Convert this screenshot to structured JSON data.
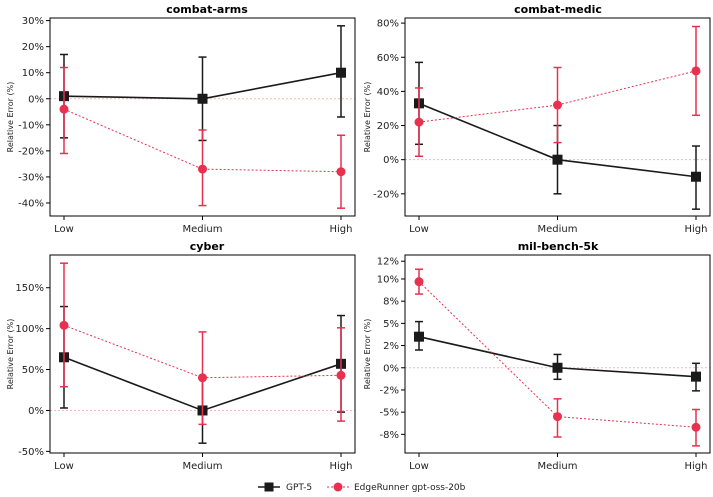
{
  "legend": {
    "gpt5_label": "GPT-5",
    "edgerunner_label": "EdgeRunner gpt-oss-20b"
  },
  "colors": {
    "gpt5": "#1a1a1a",
    "edgerunner": "#e8304f",
    "zero_line": "#f2b8c1",
    "axes": "#000000"
  },
  "chart_data": [
    {
      "type": "line",
      "title": "combat-arms",
      "ylabel": "Relative Error (%)",
      "categories": [
        "Low",
        "Medium",
        "High"
      ],
      "ylim": [
        -45,
        31
      ],
      "yticks": [
        30,
        20,
        10,
        0,
        -10,
        -20,
        -30,
        -40
      ],
      "ytick_labels": [
        "30%",
        "20%",
        "10%",
        "0%",
        "-10%",
        "-20%",
        "-30%",
        "-40%"
      ],
      "series": [
        {
          "name": "GPT-5",
          "values": [
            1,
            0,
            10
          ],
          "lower": [
            -15,
            -16,
            -7
          ],
          "upper": [
            17,
            16,
            28
          ]
        },
        {
          "name": "EdgeRunner gpt-oss-20b",
          "values": [
            -4,
            -27,
            -28
          ],
          "lower": [
            -21,
            -41,
            -42
          ],
          "upper": [
            12,
            -12,
            -14
          ]
        }
      ]
    },
    {
      "type": "line",
      "title": "combat-medic",
      "ylabel": "Relative Error (%)",
      "categories": [
        "Low",
        "Medium",
        "High"
      ],
      "ylim": [
        -33,
        83
      ],
      "yticks": [
        80,
        60,
        40,
        20,
        0,
        -20
      ],
      "ytick_labels": [
        "80%",
        "60%",
        "40%",
        "20%",
        "0%",
        "-20%"
      ],
      "series": [
        {
          "name": "GPT-5",
          "values": [
            33,
            0,
            -10
          ],
          "lower": [
            9,
            -20,
            -29
          ],
          "upper": [
            57,
            20,
            8
          ]
        },
        {
          "name": "EdgeRunner gpt-oss-20b",
          "values": [
            22,
            32,
            52
          ],
          "lower": [
            2,
            10,
            26
          ],
          "upper": [
            42,
            54,
            78
          ]
        }
      ]
    },
    {
      "type": "line",
      "title": "cyber",
      "ylabel": "Relative Error (%)",
      "categories": [
        "Low",
        "Medium",
        "High"
      ],
      "ylim": [
        -52,
        190
      ],
      "yticks": [
        150,
        100,
        50,
        0,
        -50
      ],
      "ytick_labels": [
        "150%",
        "100%",
        "50%",
        "0%",
        "-50%"
      ],
      "series": [
        {
          "name": "GPT-5",
          "values": [
            65,
            0,
            57
          ],
          "lower": [
            3,
            -40,
            -2
          ],
          "upper": [
            127,
            40,
            116
          ]
        },
        {
          "name": "EdgeRunner gpt-oss-20b",
          "values": [
            104,
            40,
            43
          ],
          "lower": [
            29,
            -17,
            -13
          ],
          "upper": [
            180,
            96,
            101
          ]
        }
      ]
    },
    {
      "type": "line",
      "title": "mil-bench-5k",
      "ylabel": "Relative Error (%)",
      "categories": [
        "Low",
        "Medium",
        "High"
      ],
      "ylim": [
        -9.6,
        12.7
      ],
      "yticks": [
        12,
        10,
        8,
        5,
        2,
        0,
        -2,
        -5,
        -8
      ],
      "ytick_values": [
        12,
        10,
        7.5,
        5,
        2.5,
        0,
        -2.5,
        -5,
        -7.5
      ],
      "ytick_labels": [
        "12%",
        "10%",
        "8%",
        "5%",
        "2%",
        "0%",
        "-2%",
        "-5%",
        "-8%"
      ],
      "series": [
        {
          "name": "GPT-5",
          "values": [
            3.5,
            0,
            -1
          ],
          "lower": [
            2,
            -1.3,
            -2.6
          ],
          "upper": [
            5.2,
            1.5,
            0.5
          ]
        },
        {
          "name": "EdgeRunner gpt-oss-20b",
          "values": [
            9.7,
            -5.5,
            -6.7
          ],
          "lower": [
            8.3,
            -7.8,
            -8.8
          ],
          "upper": [
            11.1,
            -3.5,
            -4.7
          ]
        }
      ]
    }
  ]
}
